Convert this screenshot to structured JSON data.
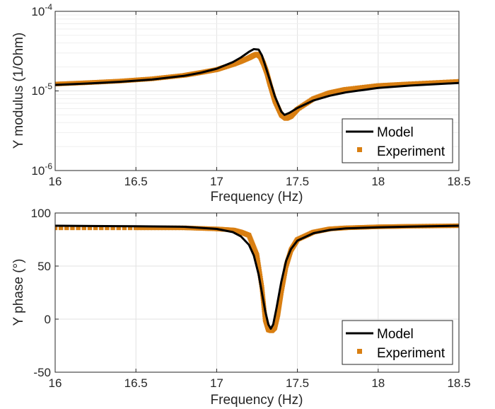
{
  "colors": {
    "model": "#000000",
    "experiment": "#D97F12",
    "grid_major": "#e2e2e2",
    "grid_minor": "#efefef",
    "axis": "#262626"
  },
  "chart_data": [
    {
      "type": "line",
      "xlabel": "Frequency (Hz)",
      "ylabel": "Y modulus (1/Ohm)",
      "yscale": "log",
      "xlim": [
        16,
        18.5
      ],
      "ylim": [
        1e-06,
        0.0001
      ],
      "grid": "on (major and minor)",
      "legend_position": "bottom-right",
      "x_ticks": [
        "16",
        "16.5",
        "17",
        "17.5",
        "18",
        "18.5"
      ],
      "y_ticks": [
        {
          "base": "10",
          "exp": "-6"
        },
        {
          "base": "10",
          "exp": "-5"
        },
        {
          "base": "10",
          "exp": "-4"
        }
      ],
      "series": [
        {
          "name": "Model",
          "style": "line",
          "x": [
            16.0,
            16.2,
            16.4,
            16.6,
            16.8,
            16.9,
            17.0,
            17.1,
            17.15,
            17.2,
            17.23,
            17.26,
            17.28,
            17.3,
            17.33,
            17.36,
            17.4,
            17.42,
            17.45,
            17.5,
            17.6,
            17.7,
            17.8,
            18.0,
            18.2,
            18.5
          ],
          "y": [
            1.19e-05,
            1.24e-05,
            1.3e-05,
            1.39e-05,
            1.55e-05,
            1.69e-05,
            1.9e-05,
            2.3e-05,
            2.63e-05,
            3.1e-05,
            3.35e-05,
            3.3e-05,
            2.8e-05,
            2.1e-05,
            1.35e-05,
            8.6e-06,
            5.5e-06,
            5e-06,
            5.3e-06,
            6.1e-06,
            7.6e-06,
            8.7e-06,
            9.6e-06,
            1.09e-05,
            1.17e-05,
            1.26e-05
          ]
        },
        {
          "name": "Experiment",
          "style": "markers",
          "x": [
            16.0,
            16.2,
            16.4,
            16.6,
            16.8,
            16.9,
            17.0,
            17.1,
            17.15,
            17.2,
            17.23,
            17.25,
            17.27,
            17.29,
            17.31,
            17.33,
            17.36,
            17.4,
            17.43,
            17.46,
            17.5,
            17.6,
            17.7,
            17.8,
            18.0,
            18.2,
            18.5
          ],
          "y": [
            1.22e-05,
            1.27e-05,
            1.33e-05,
            1.42e-05,
            1.57e-05,
            1.7e-05,
            1.85e-05,
            2.15e-05,
            2.35e-05,
            2.6e-05,
            2.8e-05,
            2.9e-05,
            2.7e-05,
            2.2e-05,
            1.7e-05,
            1.2e-05,
            7.5e-06,
            5e-06,
            4.5e-06,
            4.8e-06,
            5.9e-06,
            8e-06,
            9.5e-06,
            1.05e-05,
            1.17e-05,
            1.23e-05,
            1.32e-05
          ]
        }
      ]
    },
    {
      "type": "line",
      "xlabel": "Frequency (Hz)",
      "ylabel": "Y phase (°)",
      "yscale": "linear",
      "xlim": [
        16,
        18.5
      ],
      "ylim": [
        -50,
        100
      ],
      "grid": "on",
      "legend_position": "bottom-right",
      "x_ticks": [
        "16",
        "16.5",
        "17",
        "17.5",
        "18",
        "18.5"
      ],
      "y_ticks": [
        "-50",
        "0",
        "50",
        "100"
      ],
      "series": [
        {
          "name": "Model",
          "style": "line",
          "x": [
            16.0,
            16.5,
            16.8,
            17.0,
            17.1,
            17.15,
            17.2,
            17.23,
            17.26,
            17.28,
            17.3,
            17.32,
            17.335,
            17.35,
            17.37,
            17.4,
            17.43,
            17.46,
            17.5,
            17.6,
            17.7,
            17.8,
            18.0,
            18.2,
            18.5
          ],
          "y": [
            88,
            87.5,
            87,
            85,
            82,
            78,
            70,
            60,
            42,
            25,
            8,
            -5,
            -9,
            -5,
            10,
            35,
            55,
            66,
            74,
            81,
            84,
            85.5,
            86.5,
            87.2,
            88
          ]
        },
        {
          "name": "Experiment",
          "style": "markers",
          "x": [
            16.0,
            16.5,
            16.8,
            17.0,
            17.1,
            17.15,
            17.2,
            17.25,
            17.28,
            17.3,
            17.32,
            17.34,
            17.36,
            17.38,
            17.4,
            17.43,
            17.46,
            17.5,
            17.6,
            17.7,
            17.8,
            18.0,
            18.2,
            18.5
          ],
          "y": [
            86,
            86,
            86,
            85,
            84,
            82,
            79,
            60,
            30,
            0,
            -10,
            -11,
            -8,
            5,
            25,
            50,
            65,
            75,
            82,
            85,
            86,
            87,
            87.5,
            88
          ]
        }
      ]
    }
  ]
}
